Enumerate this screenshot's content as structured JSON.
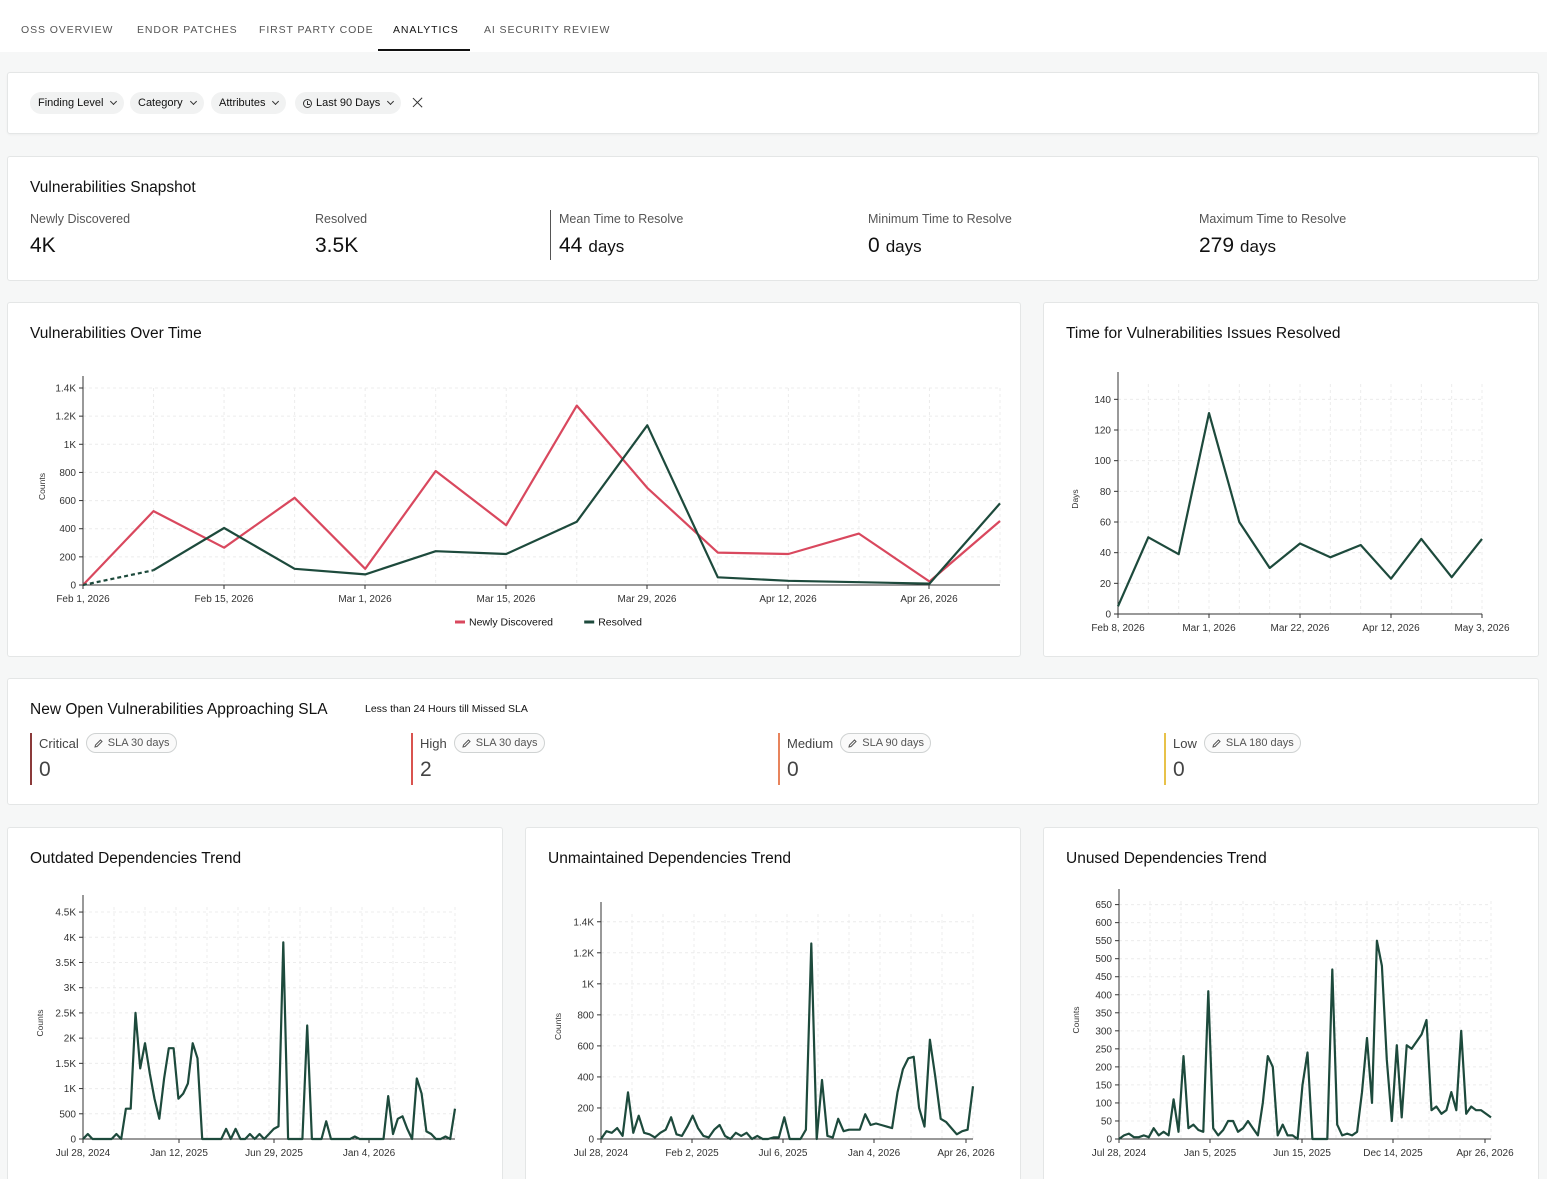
{
  "tabs": [
    {
      "label": "OSS OVERVIEW"
    },
    {
      "label": "ENDOR PATCHES"
    },
    {
      "label": "FIRST PARTY CODE"
    },
    {
      "label": "ANALYTICS",
      "active": true
    },
    {
      "label": "AI SECURITY REVIEW"
    }
  ],
  "filters": {
    "finding_level": "Finding Level",
    "category": "Category",
    "attributes": "Attributes",
    "time_range": "Last 90 Days"
  },
  "snapshot": {
    "title": "Vulnerabilities Snapshot",
    "metrics": [
      {
        "label": "Newly Discovered",
        "value": "4K",
        "unit": ""
      },
      {
        "label": "Resolved",
        "value": "3.5K",
        "unit": ""
      },
      {
        "label": "Mean Time to Resolve",
        "value": "44",
        "unit": "days"
      },
      {
        "label": "Minimum Time to Resolve",
        "value": "0",
        "unit": "days"
      },
      {
        "label": "Maximum Time to Resolve",
        "value": "279",
        "unit": "days"
      }
    ]
  },
  "sla": {
    "title": "New Open Vulnerabilities Approaching SLA",
    "subtitle": "Less than 24 Hours till Missed SLA",
    "items": [
      {
        "label": "Critical",
        "badge": "SLA 30 days",
        "count": "0",
        "color": "#8b3a3a"
      },
      {
        "label": "High",
        "badge": "SLA 30 days",
        "count": "2",
        "color": "#d9534f"
      },
      {
        "label": "Medium",
        "badge": "SLA 90 days",
        "count": "0",
        "color": "#e8845c"
      },
      {
        "label": "Low",
        "badge": "SLA 180 days",
        "count": "0",
        "color": "#e8c24a"
      }
    ]
  },
  "colors": {
    "newly_discovered": "#d9485e",
    "resolved": "#1d4a3c"
  },
  "chart_data": [
    {
      "id": "over-time",
      "type": "line",
      "title": "Vulnerabilities Over Time",
      "xlabel": "",
      "ylabel": "Counts",
      "ylim": [
        0,
        1400
      ],
      "yticks": [
        0,
        200,
        400,
        600,
        800,
        "1K",
        "1.2K",
        "1.4K"
      ],
      "xticks": [
        "Feb 1, 2026",
        "Feb 15, 2026",
        "Mar 1, 2026",
        "Mar 15, 2026",
        "Mar 29, 2026",
        "Apr 12, 2026",
        "Apr 26, 2026"
      ],
      "x": [
        "Feb 1, 2026",
        "Feb 8, 2026",
        "Feb 15, 2026",
        "Feb 22, 2026",
        "Mar 1, 2026",
        "Mar 8, 2026",
        "Mar 15, 2026",
        "Mar 22, 2026",
        "Mar 29, 2026",
        "Apr 5, 2026",
        "Apr 12, 2026",
        "Apr 19, 2026",
        "Apr 26, 2026",
        "May 3, 2026"
      ],
      "series": [
        {
          "name": "Newly Discovered",
          "values": [
            0,
            525,
            265,
            620,
            115,
            810,
            425,
            1275,
            690,
            230,
            220,
            365,
            25,
            455
          ]
        },
        {
          "name": "Resolved",
          "values": [
            0,
            105,
            405,
            115,
            75,
            240,
            220,
            450,
            1135,
            55,
            30,
            20,
            10,
            580
          ]
        }
      ],
      "legend": "bottom",
      "grid": true
    },
    {
      "id": "time-resolved",
      "type": "line",
      "title": "Time for Vulnerabilities Issues Resolved",
      "xlabel": "",
      "ylabel": "Days",
      "ylim": [
        0,
        150
      ],
      "yticks": [
        0,
        20,
        40,
        60,
        80,
        100,
        120,
        140
      ],
      "xticks": [
        "Feb 8, 2026",
        "Mar 1, 2026",
        "Mar 22, 2026",
        "Apr 12, 2026",
        "May 3, 2026"
      ],
      "x": [
        "Feb 8, 2026",
        "Feb 15, 2026",
        "Feb 22, 2026",
        "Mar 1, 2026",
        "Mar 8, 2026",
        "Mar 15, 2026",
        "Mar 22, 2026",
        "Mar 29, 2026",
        "Apr 5, 2026",
        "Apr 12, 2026",
        "Apr 19, 2026",
        "Apr 26, 2026",
        "May 3, 2026"
      ],
      "series": [
        {
          "values": [
            5,
            50,
            39,
            131,
            60,
            30,
            46,
            37,
            45,
            23,
            49,
            24,
            49
          ]
        }
      ],
      "grid": true
    },
    {
      "id": "outdated",
      "type": "line",
      "title": "Outdated Dependencies Trend",
      "ylabel": "Counts",
      "ylim": [
        0,
        4600
      ],
      "yticks": [
        0,
        500,
        "1K",
        "1.5K",
        "2K",
        "2.5K",
        "3K",
        "3.5K",
        "4K",
        "4.5K"
      ],
      "xticks": [
        "Jul 28, 2024",
        "Jan 12, 2025",
        "Jun 29, 2025",
        "Jan 4, 2026"
      ],
      "x_start": "Jul 28, 2024",
      "x_step_days": 7,
      "series": [
        {
          "values": [
            0,
            100,
            0,
            0,
            0,
            0,
            0,
            100,
            0,
            600,
            600,
            2500,
            1400,
            1900,
            1300,
            800,
            400,
            1200,
            1800,
            1800,
            800,
            900,
            1100,
            1900,
            1600,
            0,
            0,
            0,
            0,
            0,
            200,
            0,
            200,
            0,
            0,
            100,
            0,
            100,
            0,
            100,
            200,
            250,
            3900,
            0,
            0,
            0,
            0,
            2250,
            0,
            0,
            0,
            350,
            0,
            0,
            0,
            0,
            0,
            50,
            0,
            0,
            0,
            0,
            0,
            0,
            850,
            100,
            400,
            450,
            200,
            0,
            1200,
            900,
            150,
            100,
            0,
            0,
            50,
            0,
            600
          ]
        }
      ],
      "grid": true
    },
    {
      "id": "unmaintained",
      "type": "line",
      "title": "Unmaintained Dependencies Trend",
      "ylabel": "Counts",
      "ylim": [
        0,
        1450
      ],
      "yticks": [
        0,
        200,
        400,
        600,
        800,
        "1K",
        "1.2K",
        "1.4K"
      ],
      "xticks": [
        "Jul 28, 2024",
        "Feb 2, 2025",
        "Jul 6, 2025",
        "Jan 4, 2026",
        "Apr 26, 2026"
      ],
      "x_start": "Jul 28, 2024",
      "x_step_days": 7,
      "series": [
        {
          "values": [
            0,
            50,
            40,
            70,
            20,
            300,
            40,
            150,
            40,
            30,
            10,
            40,
            60,
            140,
            30,
            20,
            80,
            150,
            70,
            20,
            10,
            60,
            90,
            20,
            0,
            40,
            20,
            40,
            0,
            20,
            0,
            0,
            10,
            10,
            140,
            0,
            0,
            0,
            60,
            1260,
            0,
            380,
            20,
            10,
            130,
            50,
            60,
            60,
            60,
            160,
            90,
            100,
            90,
            80,
            70,
            300,
            450,
            520,
            530,
            200,
            80,
            640,
            400,
            130,
            110,
            70,
            30,
            50,
            60,
            340
          ]
        }
      ],
      "grid": true
    },
    {
      "id": "unused",
      "type": "line",
      "title": "Unused Dependencies Trend",
      "ylabel": "Counts",
      "ylim": [
        0,
        660
      ],
      "yticks": [
        0,
        50,
        100,
        150,
        200,
        250,
        300,
        350,
        400,
        450,
        500,
        550,
        600,
        650
      ],
      "xticks": [
        "Jul 28, 2024",
        "Jan 5, 2025",
        "Jun 15, 2025",
        "Dec 14, 2025",
        "Apr 26, 2026"
      ],
      "x_start": "Jul 28, 2024",
      "x_step_days": 7,
      "series": [
        {
          "values": [
            0,
            10,
            15,
            5,
            5,
            10,
            5,
            30,
            10,
            20,
            10,
            110,
            20,
            230,
            30,
            40,
            25,
            20,
            410,
            30,
            10,
            25,
            50,
            50,
            20,
            30,
            50,
            30,
            10,
            100,
            230,
            200,
            10,
            40,
            10,
            10,
            0,
            150,
            240,
            0,
            0,
            0,
            0,
            470,
            40,
            10,
            15,
            10,
            20,
            130,
            280,
            100,
            550,
            480,
            220,
            50,
            260,
            60,
            260,
            250,
            270,
            290,
            330,
            80,
            90,
            70,
            80,
            130,
            80,
            300,
            70,
            90,
            80,
            80,
            70,
            60
          ]
        }
      ],
      "grid": true
    }
  ]
}
